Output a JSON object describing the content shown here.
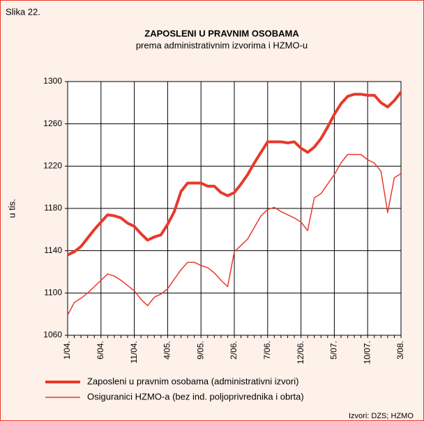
{
  "figure_label": "Slika 22.",
  "source": "Izvori: DZS; HZMO",
  "chart_data": {
    "type": "line",
    "title": "ZAPOSLENI U PRAVNIM OSOBAMA",
    "subtitle": "prema administrativnim izvorima i HZMO-u",
    "y_label": "u tis.",
    "categories": [
      "1/04.",
      null,
      null,
      null,
      null,
      "6/04.",
      null,
      null,
      null,
      null,
      "11/04.",
      null,
      null,
      null,
      null,
      "4/05.",
      null,
      null,
      null,
      null,
      "9/05.",
      null,
      null,
      null,
      null,
      "2/06.",
      null,
      null,
      null,
      null,
      "7/06.",
      null,
      null,
      null,
      null,
      "12/06.",
      null,
      null,
      null,
      null,
      "5/07.",
      null,
      null,
      null,
      null,
      "10/07.",
      null,
      null,
      null,
      null,
      "3/08."
    ],
    "series": [
      {
        "name": "Zaposleni u pravnim osobama (administrativni izvori)",
        "color": "#e8392a",
        "width": 4,
        "values": [
          1136,
          1139,
          1144,
          1152,
          1160,
          1167,
          1174,
          1173,
          1171,
          1166,
          1163,
          1156,
          1150,
          1153,
          1155,
          1165,
          1177,
          1196,
          1204,
          1204,
          1204,
          1201,
          1201,
          1195,
          1192,
          1195,
          1203,
          1212,
          1223,
          1233,
          1243,
          1243,
          1243,
          1242,
          1243,
          1237,
          1233,
          1238,
          1246,
          1257,
          1269,
          1279,
          1286,
          1288,
          1288,
          1287,
          1287,
          1280,
          1276,
          1282,
          1290
        ]
      },
      {
        "name": "Osiguranici HZMO-a (bez ind. poljoprivrednika i obrta)",
        "color": "#e8392a",
        "width": 1.5,
        "values": [
          1079,
          1091,
          1095,
          1100,
          1106,
          1112,
          1118,
          1116,
          1112,
          1107,
          1102,
          1094,
          1088,
          1096,
          1099,
          1104,
          1113,
          1122,
          1129,
          1129,
          1126,
          1124,
          1119,
          1112,
          1106,
          1139,
          1145,
          1151,
          1162,
          1173,
          1179,
          1181,
          1177,
          1174,
          1171,
          1167,
          1159,
          1190,
          1194,
          1203,
          1212,
          1223,
          1231,
          1231,
          1231,
          1226,
          1223,
          1215,
          1176,
          1209,
          1213
        ]
      }
    ],
    "ylim": [
      1060,
      1300
    ],
    "yticks": [
      1060,
      1100,
      1140,
      1180,
      1220,
      1260,
      1300
    ],
    "grid": true
  }
}
